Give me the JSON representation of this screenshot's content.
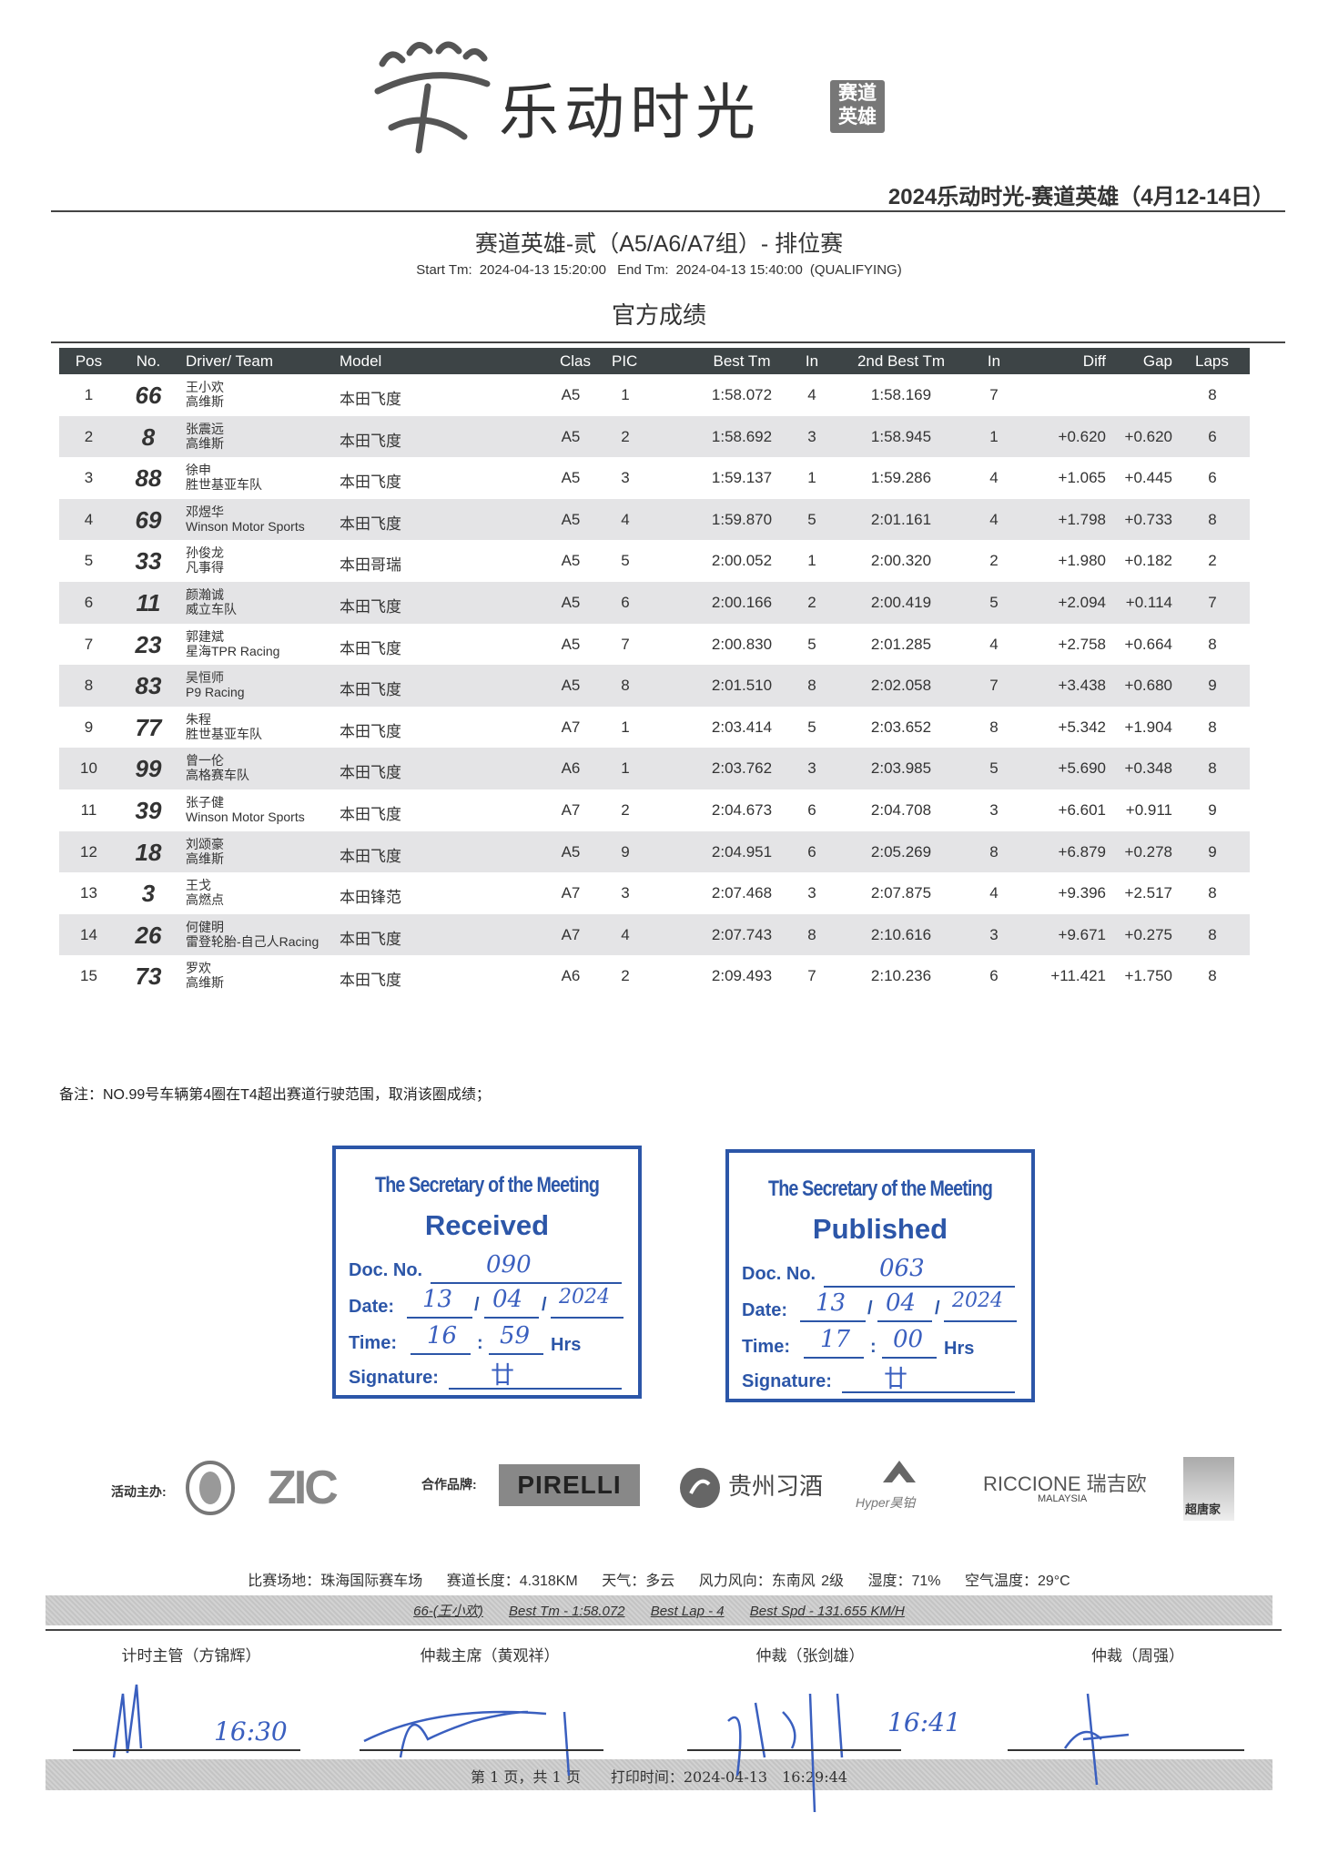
{
  "header": {
    "logo_text": "乐动时光",
    "logo_badge": [
      "赛道",
      "英雄"
    ],
    "event_title": "2024乐动时光-赛道英雄（4月12-14日）",
    "session_title": "赛道英雄-贰（A5/A6/A7组）- 排位赛",
    "start_label": "Start Tm:",
    "start_time": "2024-04-13 15:20:00",
    "end_label": "End Tm:",
    "end_time": "2024-04-13 15:40:00",
    "session_type": "(QUALIFYING)",
    "results_title": "官方成绩"
  },
  "table": {
    "columns": [
      "Pos",
      "No.",
      "Driver/ Team",
      "Model",
      "Clas",
      "PIC",
      "Best Tm",
      "In",
      "2nd Best Tm",
      "In",
      "Diff",
      "Gap",
      "Laps"
    ],
    "rows": [
      {
        "pos": "1",
        "no": "66",
        "driver": "王小欢",
        "team": "高维斯",
        "model": "本田飞度",
        "clas": "A5",
        "pic": "1",
        "best": "1:58.072",
        "in1": "4",
        "second": "1:58.169",
        "in2": "7",
        "diff": "",
        "gap": "",
        "laps": "8"
      },
      {
        "pos": "2",
        "no": "8",
        "driver": "张震远",
        "team": "高维斯",
        "model": "本田飞度",
        "clas": "A5",
        "pic": "2",
        "best": "1:58.692",
        "in1": "3",
        "second": "1:58.945",
        "in2": "1",
        "diff": "+0.620",
        "gap": "+0.620",
        "laps": "6"
      },
      {
        "pos": "3",
        "no": "88",
        "driver": "徐申",
        "team": "胜世基亚车队",
        "model": "本田飞度",
        "clas": "A5",
        "pic": "3",
        "best": "1:59.137",
        "in1": "1",
        "second": "1:59.286",
        "in2": "4",
        "diff": "+1.065",
        "gap": "+0.445",
        "laps": "6"
      },
      {
        "pos": "4",
        "no": "69",
        "driver": "邓煜华",
        "team": "Winson Motor Sports",
        "model": "本田飞度",
        "clas": "A5",
        "pic": "4",
        "best": "1:59.870",
        "in1": "5",
        "second": "2:01.161",
        "in2": "4",
        "diff": "+1.798",
        "gap": "+0.733",
        "laps": "8"
      },
      {
        "pos": "5",
        "no": "33",
        "driver": "孙俊龙",
        "team": "凡事得",
        "model": "本田哥瑞",
        "clas": "A5",
        "pic": "5",
        "best": "2:00.052",
        "in1": "1",
        "second": "2:00.320",
        "in2": "2",
        "diff": "+1.980",
        "gap": "+0.182",
        "laps": "2"
      },
      {
        "pos": "6",
        "no": "11",
        "driver": "颜瀚诚",
        "team": "威立车队",
        "model": "本田飞度",
        "clas": "A5",
        "pic": "6",
        "best": "2:00.166",
        "in1": "2",
        "second": "2:00.419",
        "in2": "5",
        "diff": "+2.094",
        "gap": "+0.114",
        "laps": "7"
      },
      {
        "pos": "7",
        "no": "23",
        "driver": "郭建斌",
        "team": "星海TPR Racing",
        "model": "本田飞度",
        "clas": "A5",
        "pic": "7",
        "best": "2:00.830",
        "in1": "5",
        "second": "2:01.285",
        "in2": "4",
        "diff": "+2.758",
        "gap": "+0.664",
        "laps": "8"
      },
      {
        "pos": "8",
        "no": "83",
        "driver": "吴恒师",
        "team": "P9 Racing",
        "model": "本田飞度",
        "clas": "A5",
        "pic": "8",
        "best": "2:01.510",
        "in1": "8",
        "second": "2:02.058",
        "in2": "7",
        "diff": "+3.438",
        "gap": "+0.680",
        "laps": "9"
      },
      {
        "pos": "9",
        "no": "77",
        "driver": "朱程",
        "team": "胜世基亚车队",
        "model": "本田飞度",
        "clas": "A7",
        "pic": "1",
        "best": "2:03.414",
        "in1": "5",
        "second": "2:03.652",
        "in2": "8",
        "diff": "+5.342",
        "gap": "+1.904",
        "laps": "8"
      },
      {
        "pos": "10",
        "no": "99",
        "driver": "曾一伦",
        "team": "高格赛车队",
        "model": "本田飞度",
        "clas": "A6",
        "pic": "1",
        "best": "2:03.762",
        "in1": "3",
        "second": "2:03.985",
        "in2": "5",
        "diff": "+5.690",
        "gap": "+0.348",
        "laps": "8"
      },
      {
        "pos": "11",
        "no": "39",
        "driver": "张子健",
        "team": "Winson Motor Sports",
        "model": "本田飞度",
        "clas": "A7",
        "pic": "2",
        "best": "2:04.673",
        "in1": "6",
        "second": "2:04.708",
        "in2": "3",
        "diff": "+6.601",
        "gap": "+0.911",
        "laps": "9"
      },
      {
        "pos": "12",
        "no": "18",
        "driver": "刘颂豪",
        "team": "高维斯",
        "model": "本田飞度",
        "clas": "A5",
        "pic": "9",
        "best": "2:04.951",
        "in1": "6",
        "second": "2:05.269",
        "in2": "8",
        "diff": "+6.879",
        "gap": "+0.278",
        "laps": "9"
      },
      {
        "pos": "13",
        "no": "3",
        "driver": "王戈",
        "team": "高燃点",
        "model": "本田锋范",
        "clas": "A7",
        "pic": "3",
        "best": "2:07.468",
        "in1": "3",
        "second": "2:07.875",
        "in2": "4",
        "diff": "+9.396",
        "gap": "+2.517",
        "laps": "8"
      },
      {
        "pos": "14",
        "no": "26",
        "driver": "何健明",
        "team": "雷登轮胎-自己人Racing",
        "model": "本田飞度",
        "clas": "A7",
        "pic": "4",
        "best": "2:07.743",
        "in1": "8",
        "second": "2:10.616",
        "in2": "3",
        "diff": "+9.671",
        "gap": "+0.275",
        "laps": "8"
      },
      {
        "pos": "15",
        "no": "73",
        "driver": "罗欢",
        "team": "高维斯",
        "model": "本田飞度",
        "clas": "A6",
        "pic": "2",
        "best": "2:09.493",
        "in1": "7",
        "second": "2:10.236",
        "in2": "6",
        "diff": "+11.421",
        "gap": "+1.750",
        "laps": "8"
      }
    ]
  },
  "note": "备注：NO.99号车辆第4圈在T4超出赛道行驶范围，取消该圈成绩；",
  "stamps": [
    {
      "title": "The Secretary of the Meeting",
      "status": "Received",
      "doc_label": "Doc. No.",
      "doc_no": "090",
      "date_label": "Date:",
      "day": "13",
      "month": "04",
      "year": "2024",
      "time_label": "Time:",
      "hour": "16",
      "minute": "59",
      "hrs": "Hrs",
      "sig_label": "Signature:",
      "sig": "廿"
    },
    {
      "title": "The Secretary of the Meeting",
      "status": "Published",
      "doc_label": "Doc. No.",
      "doc_no": "063",
      "date_label": "Date:",
      "day": "13",
      "month": "04",
      "year": "2024",
      "time_label": "Time:",
      "hour": "17",
      "minute": "00",
      "hrs": "Hrs",
      "sig_label": "Signature:",
      "sig": "廿"
    }
  ],
  "sponsors": {
    "organizer_label": "活动主办:",
    "partner_label": "合作品牌:",
    "logos": [
      "ZIC",
      "PIRELLI",
      "贵州习酒",
      "Hyper昊铂",
      "RICCIONE 瑞吉欧",
      "MALAYSIA",
      "超唐家"
    ]
  },
  "conditions": {
    "venue": "比赛场地：珠海国际赛车场",
    "length": "赛道长度：4.318KM",
    "weather": "天气：多云",
    "wind": "风力风向：东南风 2级",
    "humidity": "湿度：71%",
    "temperature": "空气温度：29°C"
  },
  "best_lap": {
    "driver": "66-(王小欢)",
    "best_tm": "Best Tm - 1:58.072",
    "best_lap": "Best Lap - 4",
    "best_spd": "Best Spd - 131.655 KM/H"
  },
  "signatures": [
    {
      "label": "计时主管（方锦辉）",
      "time": "16:30"
    },
    {
      "label": "仲裁主席（黄观祥）",
      "time": ""
    },
    {
      "label": "仲裁（张剑雄）",
      "time": "16:41"
    },
    {
      "label": "仲裁（周强）",
      "time": ""
    }
  ],
  "footer": {
    "page": "第 1 页，共 1 页",
    "print_time": "打印时间：2024-04-13　16:29:44"
  },
  "colors": {
    "stamp_blue": "#2c56a8",
    "header_bg": "#3d4446",
    "row_alt": "#e4e4e6"
  }
}
